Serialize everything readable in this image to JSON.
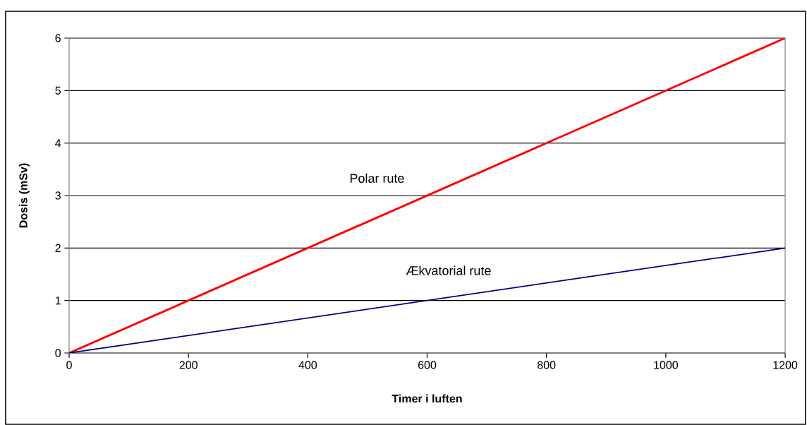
{
  "chart_data": {
    "type": "line",
    "xlabel": "Timer i luften",
    "ylabel": "Dosis (mSv)",
    "x": [
      0,
      1200
    ],
    "series": [
      {
        "name": "Polar rute",
        "color": "#ff0000",
        "values": [
          0,
          6
        ]
      },
      {
        "name": "Ækvatorial rute",
        "color": "#000080",
        "values": [
          0,
          2
        ]
      }
    ],
    "xlim": [
      0,
      1200
    ],
    "xticks": [
      0,
      200,
      400,
      600,
      800,
      1000,
      1200
    ],
    "ylim": [
      0,
      6
    ],
    "yticks": [
      0,
      1,
      2,
      3,
      4,
      5,
      6
    ],
    "grid": "y",
    "marker": "none",
    "line_style": "solid"
  }
}
